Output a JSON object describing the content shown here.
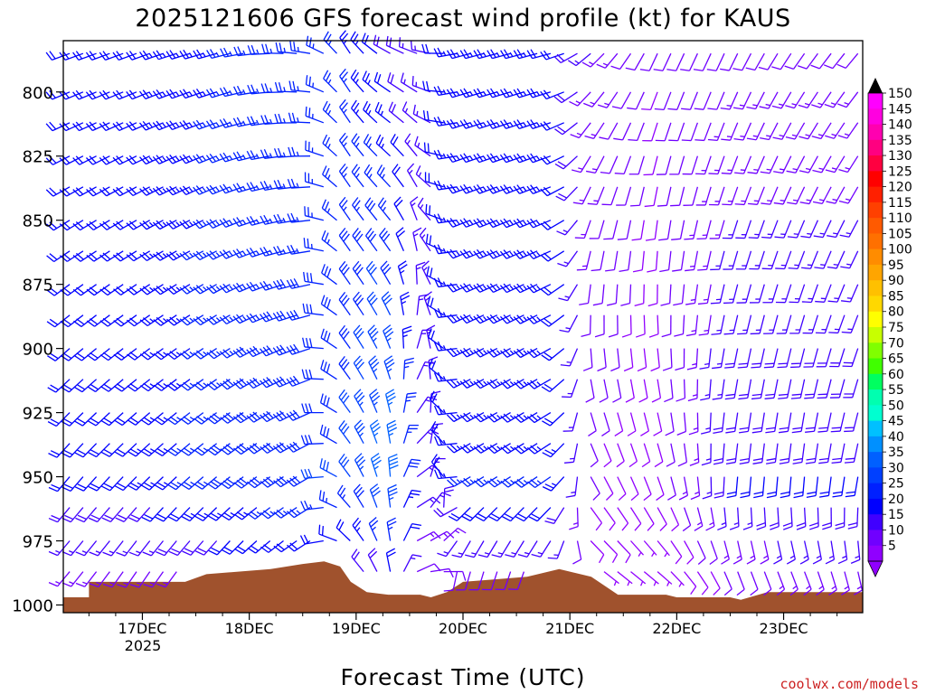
{
  "chart_data": {
    "type": "wind-profile",
    "title": "2025121606 GFS forecast wind profile (kt) for KAUS",
    "xlabel": "Forecast Time (UTC)",
    "ylabel": "",
    "credit": "coolwx.com/models",
    "y_axis": {
      "unit": "hPa",
      "range": [
        780,
        1003
      ],
      "ticks": [
        800,
        825,
        850,
        875,
        900,
        925,
        950,
        975,
        1000
      ],
      "tick_labels": [
        "800",
        "825",
        "850",
        "875",
        "900",
        "925",
        "950",
        "975",
        "1000"
      ]
    },
    "x_axis": {
      "unit": "days after 2025-12-16 00Z",
      "range": [
        0.26,
        7.74
      ],
      "ticks": [
        1,
        2,
        3,
        4,
        5,
        6,
        7
      ],
      "tick_labels": [
        "17DEC",
        "18DEC",
        "19DEC",
        "20DEC",
        "21DEC",
        "22DEC",
        "23DEC"
      ],
      "year_label": "2025"
    },
    "colorbar": {
      "labels": [
        "150",
        "145",
        "140",
        "135",
        "130",
        "125",
        "120",
        "115",
        "110",
        "105",
        "100",
        "95",
        "90",
        "85",
        "80",
        "75",
        "70",
        "65",
        "60",
        "55",
        "50",
        "45",
        "40",
        "35",
        "30",
        "25",
        "20",
        "15",
        "10",
        "5"
      ],
      "colors": [
        "#ff00ff",
        "#ff00e0",
        "#ff00b0",
        "#ff0080",
        "#ff0040",
        "#ff0000",
        "#ff2000",
        "#ff4000",
        "#ff5a00",
        "#ff7000",
        "#ff8c00",
        "#ffa500",
        "#ffc000",
        "#ffd800",
        "#ffff00",
        "#c8ff00",
        "#80ff00",
        "#40ff00",
        "#00ff60",
        "#00ffb0",
        "#00ffd0",
        "#00c0ff",
        "#0090ff",
        "#0060ff",
        "#0040ff",
        "#0020ff",
        "#0000ff",
        "#4000ff",
        "#7000ff",
        "#9000ff"
      ]
    },
    "pressure_levels": [
      785,
      800,
      812,
      825,
      837,
      850,
      862,
      875,
      887,
      900,
      912,
      925,
      937,
      950,
      962,
      975,
      987,
      1000
    ],
    "wind_keyframes": [
      {
        "t": 0.3,
        "sfc": [
          220,
          10
        ],
        "low": [
          220,
          20
        ],
        "upper": [
          250,
          20
        ]
      },
      {
        "t": 1.0,
        "sfc": [
          210,
          10
        ],
        "low": [
          225,
          22
        ],
        "upper": [
          250,
          22
        ]
      },
      {
        "t": 1.8,
        "sfc": [
          215,
          12
        ],
        "low": [
          230,
          28
        ],
        "upper": [
          255,
          25
        ]
      },
      {
        "t": 2.6,
        "sfc": [
          235,
          15
        ],
        "low": [
          240,
          30
        ],
        "upper": [
          280,
          25
        ]
      },
      {
        "t": 2.9,
        "sfc": [
          300,
          10
        ],
        "low": [
          320,
          30
        ],
        "upper": [
          330,
          25
        ]
      },
      {
        "t": 3.3,
        "sfc": [
          340,
          15
        ],
        "low": [
          350,
          40
        ],
        "upper": [
          300,
          20
        ]
      },
      {
        "t": 3.6,
        "sfc": [
          80,
          10
        ],
        "low": [
          60,
          15
        ],
        "upper": [
          290,
          15
        ]
      },
      {
        "t": 4.0,
        "sfc": [
          180,
          8
        ],
        "low": [
          240,
          25
        ],
        "upper": [
          255,
          25
        ]
      },
      {
        "t": 4.9,
        "sfc": [
          190,
          8
        ],
        "low": [
          235,
          25
        ],
        "upper": [
          255,
          22
        ]
      },
      {
        "t": 5.2,
        "sfc": [
          120,
          6
        ],
        "low": [
          150,
          10
        ],
        "upper": [
          230,
          15
        ]
      },
      {
        "t": 5.8,
        "sfc": [
          120,
          6
        ],
        "low": [
          160,
          8
        ],
        "upper": [
          205,
          10
        ]
      },
      {
        "t": 6.5,
        "sfc": [
          150,
          8
        ],
        "low": [
          185,
          20
        ],
        "upper": [
          205,
          12
        ]
      },
      {
        "t": 7.2,
        "sfc": [
          150,
          12
        ],
        "low": [
          185,
          20
        ],
        "upper": [
          215,
          12
        ]
      },
      {
        "t": 7.74,
        "sfc": [
          160,
          10
        ],
        "low": [
          190,
          20
        ],
        "upper": [
          220,
          12
        ]
      }
    ],
    "terrain": {
      "color": "#a0522d",
      "points": [
        [
          0.26,
          997
        ],
        [
          0.5,
          997
        ],
        [
          0.5,
          991
        ],
        [
          1.4,
          991
        ],
        [
          1.6,
          988
        ],
        [
          2.2,
          986
        ],
        [
          2.5,
          984
        ],
        [
          2.7,
          983
        ],
        [
          2.85,
          985
        ],
        [
          2.95,
          991
        ],
        [
          3.1,
          995
        ],
        [
          3.3,
          996
        ],
        [
          3.6,
          996
        ],
        [
          3.7,
          997
        ],
        [
          3.85,
          995
        ],
        [
          4.0,
          991
        ],
        [
          4.3,
          990
        ],
        [
          4.6,
          989
        ],
        [
          4.9,
          986
        ],
        [
          5.2,
          989
        ],
        [
          5.45,
          996
        ],
        [
          5.9,
          996
        ],
        [
          6.0,
          997
        ],
        [
          6.5,
          997
        ],
        [
          6.6,
          998
        ],
        [
          6.85,
          995
        ],
        [
          7.3,
          995
        ],
        [
          7.74,
          995
        ]
      ]
    }
  }
}
